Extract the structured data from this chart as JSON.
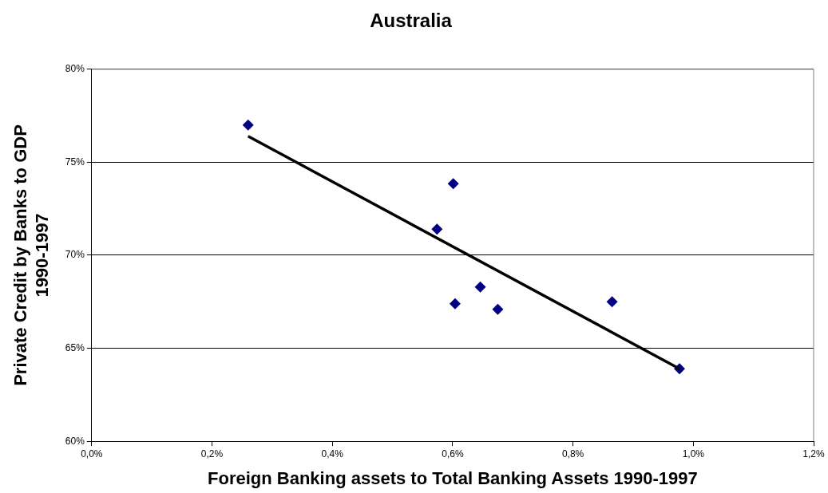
{
  "chart_data": {
    "type": "scatter",
    "title": "Australia",
    "xlabel": "Foreign Banking assets to Total Banking Assets 1990-1997",
    "ylabel": "Private Credit by Banks to GDP\n1990-1997",
    "grid": "y",
    "legend": false,
    "xlim": [
      0,
      1.2
    ],
    "ylim": [
      60,
      80
    ],
    "xticks": [
      {
        "value": 0,
        "label": "0,0%"
      },
      {
        "value": 0.2,
        "label": "0,2%"
      },
      {
        "value": 0.4,
        "label": "0,4%"
      },
      {
        "value": 0.6,
        "label": "0,6%"
      },
      {
        "value": 0.8,
        "label": "0,8%"
      },
      {
        "value": 1.0,
        "label": "1,0%"
      },
      {
        "value": 1.2,
        "label": "1,2%"
      }
    ],
    "yticks": [
      {
        "value": 60,
        "label": "60%"
      },
      {
        "value": 65,
        "label": "65%"
      },
      {
        "value": 70,
        "label": "70%"
      },
      {
        "value": 75,
        "label": "75%"
      },
      {
        "value": 80,
        "label": "80%"
      }
    ],
    "series": [
      {
        "marker": "diamond",
        "color": "#000080",
        "x": [
          0.26,
          0.601,
          0.574,
          0.646,
          0.604,
          0.675,
          0.865,
          0.977
        ],
        "values": [
          77.0,
          73.85,
          71.4,
          68.3,
          67.4,
          67.1,
          67.5,
          63.9
        ]
      },
      {
        "type": "line",
        "marker": "none",
        "color": "#000000",
        "x": [
          0.26,
          0.977
        ],
        "values": [
          76.4,
          63.9
        ]
      }
    ]
  }
}
